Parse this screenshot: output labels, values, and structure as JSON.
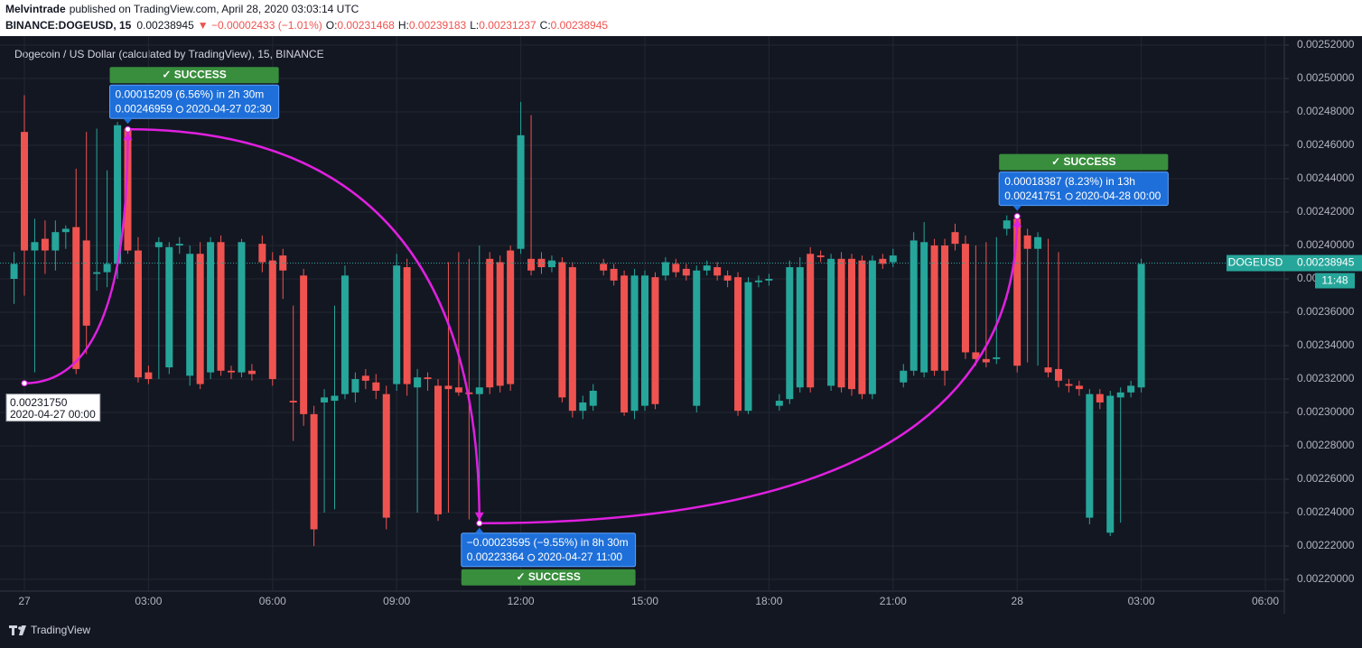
{
  "header": {
    "author": "Melvintrade",
    "published": "published on TradingView.com, April 28, 2020 03:03:14 UTC",
    "symbol": "BINANCE:DOGEUSD, 15",
    "last": "0.00238945",
    "change": "▼ −0.00002433 (−1.01%)",
    "ohlc": [
      {
        "key": "O:",
        "value": "0.00231468"
      },
      {
        "key": "H:",
        "value": "0.00239183"
      },
      {
        "key": "L:",
        "value": "0.00231237"
      },
      {
        "key": "C:",
        "value": "0.00238945"
      }
    ]
  },
  "chart_data": {
    "type": "candlestick",
    "title": "Dogecoin / US Dollar (calculated by TradingView), 15, BINANCE",
    "up_color": "#26a69a",
    "down_color": "#ef5350",
    "grid": true,
    "ylim": [
      0.002193,
      0.0025243
    ],
    "yticks": [
      {
        "value": 0.0022,
        "label": "0.00220000"
      },
      {
        "value": 0.00222,
        "label": "0.00222000"
      },
      {
        "value": 0.00224,
        "label": "0.00224000"
      },
      {
        "value": 0.00226,
        "label": "0.00226000"
      },
      {
        "value": 0.00228,
        "label": "0.00228000"
      },
      {
        "value": 0.0023,
        "label": "0.00230000"
      },
      {
        "value": 0.00232,
        "label": "0.00232000"
      },
      {
        "value": 0.00234,
        "label": "0.00234000"
      },
      {
        "value": 0.00236,
        "label": "0.00236000"
      },
      {
        "value": 0.00238,
        "label": "0.00238000"
      },
      {
        "value": 0.0024,
        "label": "0.00240000"
      },
      {
        "value": 0.00242,
        "label": "0.00242000"
      },
      {
        "value": 0.00244,
        "label": "0.00244000"
      },
      {
        "value": 0.00246,
        "label": "0.00246000"
      },
      {
        "value": 0.00248,
        "label": "0.00248000"
      },
      {
        "value": 0.0025,
        "label": "0.00250000"
      },
      {
        "value": 0.00252,
        "label": "0.00252000"
      }
    ],
    "xtick_labels": [
      "27",
      "03:00",
      "06:00",
      "09:00",
      "12:00",
      "15:00",
      "18:00",
      "21:00",
      "28",
      "03:00",
      "06:00"
    ],
    "candles": {
      "open": [
        0.00238,
        0.002468,
        0.002397,
        0.002404,
        0.002397,
        0.002408,
        0.002411,
        0.002403,
        0.002383,
        0.002384,
        0.002389,
        0.00247,
        0.002397,
        0.002324,
        0.002399,
        0.002327,
        0.0024,
        0.002322,
        0.002395,
        0.002324,
        0.002402,
        0.002325,
        0.002324,
        0.002325,
        0.002401,
        0.002391,
        0.002394,
        0.002307,
        0.002382,
        0.002299,
        0.002306,
        0.002307,
        0.002311,
        0.002312,
        0.002322,
        0.002318,
        0.002311,
        0.002317,
        0.002387,
        0.002315,
        0.002321,
        0.002316,
        0.002316,
        0.002315,
        0.002312,
        0.002311,
        0.002392,
        0.00239,
        0.002397,
        0.002398,
        0.002392,
        0.002392,
        0.002387,
        0.00239,
        0.002387,
        0.002301,
        0.002304,
        0.002389,
        0.002386,
        0.002382,
        0.002301,
        0.002304,
        0.002381,
        0.002382,
        0.002389,
        0.002386,
        0.002304,
        0.002385,
        0.002387,
        0.002382,
        0.002381,
        0.002301,
        0.002378,
        0.002379,
        0.002304,
        0.002308,
        0.002315,
        0.002395,
        0.002394,
        0.002316,
        0.002392,
        0.002392,
        0.002391,
        0.002311,
        0.002392,
        0.00239,
        0.002318,
        0.002325,
        0.002324,
        0.0024,
        0.0024,
        0.002408,
        0.002401,
        0.002336,
        0.002332,
        0.002332,
        0.00241,
        0.002416,
        0.002406,
        0.002398,
        0.002327,
        0.002326,
        0.002317,
        0.002316,
        0.002237,
        0.002311,
        0.002228,
        0.002309,
        0.002312,
        0.002315
      ],
      "high": [
        0.002396,
        0.00249,
        0.002416,
        0.002415,
        0.002415,
        0.002412,
        0.002446,
        0.002468,
        0.00247,
        0.002445,
        0.002474,
        0.00247,
        0.002405,
        0.002328,
        0.002405,
        0.002402,
        0.002405,
        0.0024,
        0.002402,
        0.002405,
        0.002406,
        0.002328,
        0.002404,
        0.002329,
        0.002406,
        0.002396,
        0.002398,
        0.002364,
        0.002386,
        0.002304,
        0.002314,
        0.002364,
        0.002388,
        0.002324,
        0.002326,
        0.002323,
        0.002316,
        0.002395,
        0.002392,
        0.002326,
        0.002324,
        0.00232,
        0.00239,
        0.002396,
        0.002392,
        0.0024,
        0.002396,
        0.002394,
        0.0024,
        0.002486,
        0.002478,
        0.002396,
        0.002394,
        0.002393,
        0.00239,
        0.00231,
        0.002317,
        0.002392,
        0.002389,
        0.002385,
        0.002386,
        0.002385,
        0.002384,
        0.002393,
        0.002392,
        0.002389,
        0.002388,
        0.002391,
        0.00239,
        0.002385,
        0.002384,
        0.002381,
        0.002382,
        0.002383,
        0.002311,
        0.002391,
        0.002393,
        0.002399,
        0.002397,
        0.002395,
        0.002396,
        0.002395,
        0.002394,
        0.002394,
        0.002395,
        0.002398,
        0.002329,
        0.002408,
        0.002414,
        0.002404,
        0.002404,
        0.002413,
        0.002406,
        0.0024,
        0.002402,
        0.002405,
        0.002418,
        0.0024175,
        0.00241,
        0.002408,
        0.002404,
        0.002396,
        0.00232,
        0.002319,
        0.002314,
        0.002314,
        0.002313,
        0.002315,
        0.002319,
        0.002392
      ],
      "low": [
        0.002365,
        0.00237,
        0.002324,
        0.002383,
        0.002385,
        0.002398,
        0.002323,
        0.002335,
        0.002373,
        0.002375,
        0.00238,
        0.002395,
        0.002318,
        0.002317,
        0.00232,
        0.002323,
        0.002395,
        0.002316,
        0.002314,
        0.00232,
        0.002322,
        0.00232,
        0.002321,
        0.002319,
        0.002384,
        0.002316,
        0.002368,
        0.002283,
        0.002292,
        0.00222,
        0.00224,
        0.002242,
        0.002308,
        0.002306,
        0.002314,
        0.002308,
        0.00223,
        0.002313,
        0.00231,
        0.00224,
        0.002313,
        0.002235,
        0.00224,
        0.00231,
        0.002236,
        0.00224,
        0.002311,
        0.002312,
        0.002313,
        0.002395,
        0.002382,
        0.002383,
        0.002384,
        0.002306,
        0.002297,
        0.002296,
        0.002301,
        0.002382,
        0.002376,
        0.002298,
        0.002296,
        0.002301,
        0.002302,
        0.002379,
        0.002381,
        0.002379,
        0.0023,
        0.002382,
        0.002379,
        0.002375,
        0.002298,
        0.002299,
        0.002375,
        0.002376,
        0.002301,
        0.002305,
        0.002312,
        0.002312,
        0.00239,
        0.002313,
        0.002312,
        0.00231,
        0.002308,
        0.002308,
        0.002386,
        0.002387,
        0.002315,
        0.002322,
        0.002321,
        0.002322,
        0.002316,
        0.002397,
        0.002332,
        0.002328,
        0.002327,
        0.002329,
        0.002406,
        0.002324,
        0.00233,
        0.002328,
        0.002321,
        0.002315,
        0.002312,
        0.00231,
        0.002233,
        0.002302,
        0.002226,
        0.002234,
        0.002309,
        0.002312
      ],
      "close": [
        0.002389,
        0.002397,
        0.002402,
        0.002397,
        0.002408,
        0.00241,
        0.002326,
        0.002352,
        0.002384,
        0.002389,
        0.002472,
        0.002397,
        0.002321,
        0.00232,
        0.002402,
        0.002399,
        0.002401,
        0.002395,
        0.002317,
        0.002402,
        0.002325,
        0.002324,
        0.002402,
        0.002323,
        0.00239,
        0.00232,
        0.002385,
        0.002306,
        0.002299,
        0.00223,
        0.002309,
        0.00231,
        0.002382,
        0.00232,
        0.002319,
        0.002313,
        0.002237,
        0.002388,
        0.002317,
        0.002321,
        0.00232,
        0.002239,
        0.002314,
        0.002312,
        0.002311,
        0.002315,
        0.002315,
        0.002316,
        0.002317,
        0.002466,
        0.002385,
        0.002387,
        0.002391,
        0.002309,
        0.002301,
        0.002306,
        0.002313,
        0.002385,
        0.002379,
        0.0023,
        0.002382,
        0.002382,
        0.002305,
        0.00239,
        0.002384,
        0.002382,
        0.002385,
        0.002388,
        0.002382,
        0.002379,
        0.002301,
        0.002378,
        0.002379,
        0.00238,
        0.002307,
        0.002387,
        0.002387,
        0.002315,
        0.002393,
        0.002392,
        0.002315,
        0.002314,
        0.002311,
        0.002391,
        0.002389,
        0.002394,
        0.002325,
        0.002403,
        0.002402,
        0.002325,
        0.002325,
        0.002401,
        0.002336,
        0.002332,
        0.00233,
        0.002333,
        0.002415,
        0.002328,
        0.002398,
        0.002405,
        0.002324,
        0.002319,
        0.002316,
        0.002314,
        0.002311,
        0.002306,
        0.00231,
        0.002312,
        0.002316,
        0.002389
      ]
    },
    "last_price": {
      "value": 0.00238945,
      "label": "0.00238945"
    },
    "symbol_label": "DOGEUSD",
    "countdown": "11:48",
    "annotations": {
      "start": {
        "price": {
          "value": 0.0023175,
          "label": "0.00231750"
        },
        "time": "2020-04-27 00:00"
      },
      "measures": [
        {
          "status": "✓ SUCCESS",
          "change": "0.00015209 (6.56%) in 2h 30m",
          "price": {
            "value": 0.00246959,
            "label": "0.00246959"
          },
          "time": "2020-04-27 02:30"
        },
        {
          "status": "✓ SUCCESS",
          "change": "−0.00023595 (−9.55%) in 8h 30m",
          "price": {
            "value": 0.00223364,
            "label": "0.00223364"
          },
          "time": "2020-04-27 11:00"
        },
        {
          "status": "✓ SUCCESS",
          "change": "0.00018387 (8.23%) in 13h",
          "price": {
            "value": 0.00241751,
            "label": "0.00241751"
          },
          "time": "2020-04-28 00:00"
        }
      ]
    }
  },
  "footer": {
    "brand": "TradingView"
  }
}
